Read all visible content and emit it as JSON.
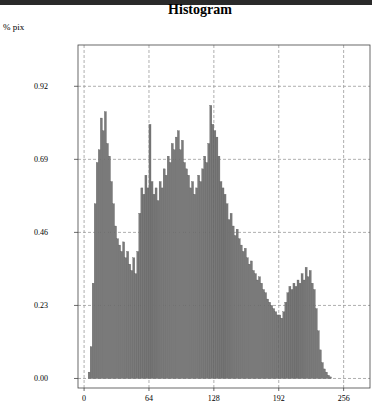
{
  "chart_data": {
    "type": "histogram",
    "title": "Histogram",
    "y_label": "% pix",
    "bins": [
      0,
      2,
      4,
      6,
      8,
      10,
      12,
      14,
      16,
      18,
      20,
      22,
      24,
      26,
      28,
      30,
      32,
      34,
      36,
      38,
      40,
      42,
      44,
      46,
      48,
      50,
      52,
      54,
      56,
      58,
      60,
      62,
      64,
      66,
      68,
      70,
      72,
      74,
      76,
      78,
      80,
      82,
      84,
      86,
      88,
      90,
      92,
      94,
      96,
      98,
      100,
      102,
      104,
      106,
      108,
      110,
      112,
      114,
      116,
      118,
      120,
      122,
      124,
      126,
      128,
      130,
      132,
      134,
      136,
      138,
      140,
      142,
      144,
      146,
      148,
      150,
      152,
      154,
      156,
      158,
      160,
      162,
      164,
      166,
      168,
      170,
      172,
      174,
      176,
      178,
      180,
      182,
      184,
      186,
      188,
      190,
      192,
      194,
      196,
      198,
      200,
      202,
      204,
      206,
      208,
      210,
      212,
      214,
      216,
      218,
      220,
      222,
      224,
      226,
      228,
      230,
      232,
      234,
      236,
      238,
      240,
      242,
      244,
      246,
      248,
      250,
      252,
      254,
      256
    ],
    "counts": [
      0,
      0,
      0.02,
      0.1,
      0.3,
      0.55,
      0.68,
      0.72,
      0.82,
      0.78,
      0.84,
      0.74,
      0.7,
      0.62,
      0.55,
      0.48,
      0.44,
      0.42,
      0.4,
      0.43,
      0.38,
      0.4,
      0.36,
      0.34,
      0.38,
      0.33,
      0.4,
      0.52,
      0.6,
      0.58,
      0.64,
      0.6,
      0.8,
      0.62,
      0.58,
      0.6,
      0.56,
      0.62,
      0.6,
      0.66,
      0.64,
      0.7,
      0.68,
      0.74,
      0.72,
      0.76,
      0.78,
      0.72,
      0.75,
      0.68,
      0.66,
      0.64,
      0.6,
      0.62,
      0.58,
      0.6,
      0.64,
      0.62,
      0.66,
      0.7,
      0.68,
      0.74,
      0.86,
      0.8,
      0.78,
      0.76,
      0.7,
      0.62,
      0.6,
      0.58,
      0.55,
      0.5,
      0.52,
      0.48,
      0.45,
      0.47,
      0.44,
      0.42,
      0.4,
      0.41,
      0.38,
      0.36,
      0.37,
      0.34,
      0.33,
      0.31,
      0.32,
      0.3,
      0.28,
      0.27,
      0.25,
      0.24,
      0.23,
      0.22,
      0.21,
      0.2,
      0.2,
      0.19,
      0.21,
      0.24,
      0.27,
      0.29,
      0.28,
      0.3,
      0.29,
      0.31,
      0.3,
      0.33,
      0.31,
      0.35,
      0.32,
      0.34,
      0.3,
      0.28,
      0.22,
      0.15,
      0.09,
      0.05,
      0.03,
      0.02,
      0.01,
      0.005,
      0,
      0,
      0,
      0,
      0,
      0
    ],
    "color": "#7a7a7a",
    "xlim": [
      -6,
      282
    ],
    "xticks": [
      0,
      64,
      128,
      192,
      256
    ],
    "ylim": [
      -0.03,
      1.05
    ],
    "yticks": [
      {
        "value": 0,
        "label": "0.00"
      },
      0.23,
      0.46,
      0.69,
      0.92
    ],
    "grid": true
  }
}
